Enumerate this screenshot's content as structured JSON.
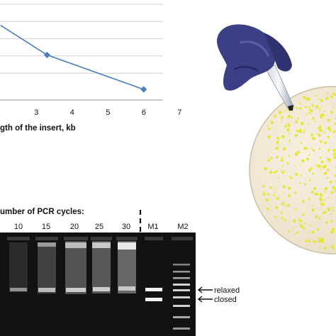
{
  "chart_data": {
    "type": "line",
    "xlabel": "gth of the insert, kb",
    "x_ticks": [
      "3",
      "4",
      "5",
      "6",
      "7"
    ],
    "x": [
      2,
      3.3,
      6
    ],
    "series": [
      {
        "values": [
          0.78,
          0.47,
          0.11
        ]
      }
    ],
    "grid": true,
    "line_color": "#4a7ebb"
  },
  "gel": {
    "title": "umber of PCR cycles:",
    "lanes": [
      "10",
      "15",
      "20",
      "25",
      "30",
      "M1",
      "M2"
    ],
    "annotations": {
      "relaxed": "relaxed",
      "closed": "closed"
    }
  },
  "photo": {
    "description_icons": [
      "gloved-hand-icon",
      "pipette-tip-icon",
      "petri-dish-icon"
    ],
    "dish_color": "#f1e8d6",
    "colony_color": "#e6e63a",
    "glove_color": "#3b3f85"
  }
}
